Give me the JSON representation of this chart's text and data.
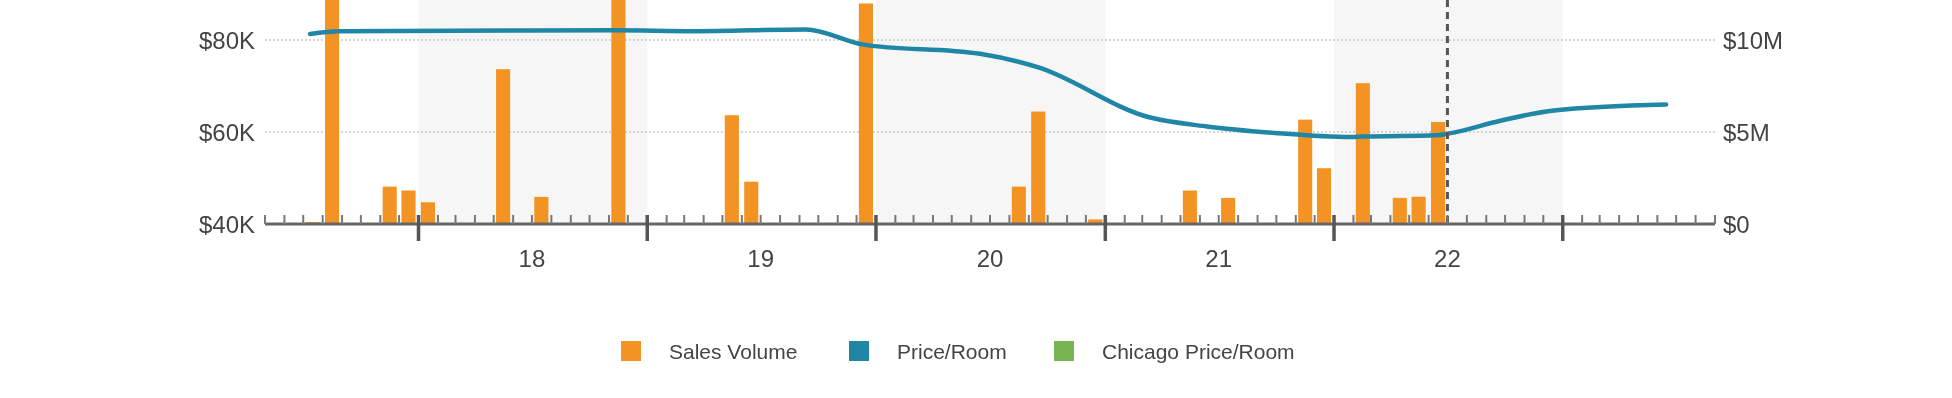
{
  "chart_data": {
    "type": "bar",
    "legend": "bottom",
    "grid": "y",
    "xlim": [
      "2017-05",
      "2023-09"
    ],
    "xticks": [
      {
        "value": "2018-07",
        "label": "18"
      },
      {
        "value": "2019-07",
        "label": "19"
      },
      {
        "value": "2020-07",
        "label": "20"
      },
      {
        "value": "2021-07",
        "label": "21"
      },
      {
        "value": "2022-07",
        "label": "22"
      }
    ],
    "ylim": [
      40000,
      88700
    ],
    "yticks": [
      {
        "value": 40000,
        "label": "$40K"
      },
      {
        "value": 60000,
        "label": "$60K"
      },
      {
        "value": 80000,
        "label": "$80K"
      }
    ],
    "y2lim": [
      0,
      12170000
    ],
    "y2ticks": [
      {
        "value": 0,
        "label": "$0"
      },
      {
        "value": 5000000,
        "label": "$5M"
      },
      {
        "value": 10000000,
        "label": "$10M"
      }
    ],
    "bands": [
      {
        "axis": "x",
        "from": "2018-01",
        "to": "2019-01",
        "color": "#f6f6f6"
      },
      {
        "axis": "x",
        "from": "2020-01",
        "to": "2021-01",
        "color": "#f6f6f6"
      },
      {
        "axis": "x",
        "from": "2022-01",
        "to": "2023-01",
        "color": "#f6f6f6"
      }
    ],
    "ref_lines": [
      {
        "axis": "x",
        "value": "2022-07",
        "color": "#555555",
        "line_style": "dashed"
      }
    ],
    "series": [
      {
        "name": "Sales Volume",
        "axis": "y2",
        "color": "#f29323",
        "x": [
          "2017-07-16",
          "2017-08-16",
          "2017-11-16",
          "2017-12-16",
          "2018-01-16",
          "2018-05-16",
          "2018-07-16",
          "2018-11-16",
          "2019-05-16",
          "2019-06-16",
          "2019-12-16",
          "2020-08-16",
          "2020-09-16",
          "2020-12-16",
          "2021-05-16",
          "2021-07-16",
          "2021-11-16",
          "2021-12-16",
          "2022-02-16",
          "2022-04-16",
          "2022-05-16",
          "2022-06-16"
        ],
        "values": [
          100000,
          12170000,
          2030000,
          1820000,
          1180000,
          8410000,
          1470000,
          12170000,
          5910000,
          2300000,
          11980000,
          2030000,
          6110000,
          250000,
          1820000,
          1420000,
          5670000,
          3030000,
          7650000,
          1420000,
          1480000,
          5540000
        ]
      },
      {
        "name": "Price/Room",
        "type": "line",
        "color": "#1f86a6",
        "x": [
          "2017-07-12",
          "2017-08-27",
          "2018-11-12",
          "2019-03-16",
          "2019-09-11",
          "2019-12-12",
          "2020-06-15",
          "2020-09-15",
          "2021-03-12",
          "2021-06-12",
          "2021-09-28",
          "2022-01-28",
          "2022-02-15",
          "2022-06-14",
          "2022-07-04",
          "2022-09-22",
          "2022-12-18",
          "2023-06-15"
        ],
        "values": [
          81300,
          81900,
          82100,
          81900,
          82300,
          79000,
          77000,
          74100,
          63200,
          61200,
          59800,
          58900,
          59000,
          59300,
          59700,
          62400,
          64700,
          66000
        ]
      },
      {
        "name": "Chicago Price/Room",
        "type": "line",
        "color": "#78b552"
      }
    ]
  }
}
